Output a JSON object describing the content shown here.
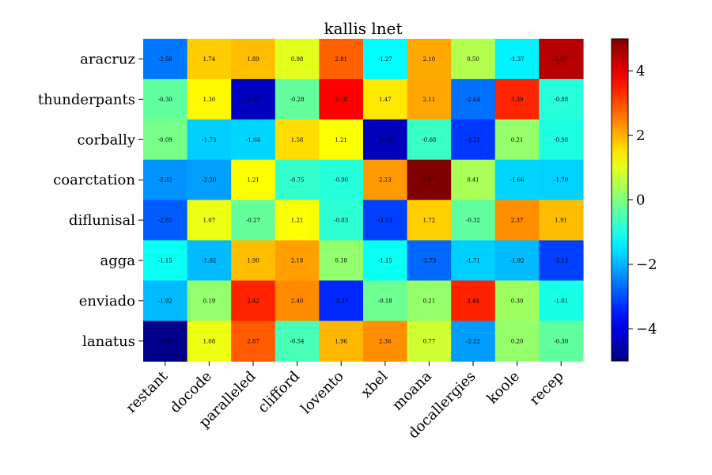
{
  "chart_data": {
    "type": "heatmap",
    "title": "kallis lnet",
    "xlabel": "",
    "ylabel": "",
    "rows": [
      "aracruz",
      "thunderpants",
      "corbally",
      "coarctation",
      "diflunisal",
      "agga",
      "enviado",
      "lanatus"
    ],
    "columns": [
      "restant",
      "docode",
      "paralleled",
      "clifford",
      "lovento",
      "xbel",
      "moana",
      "docallergies",
      "koole",
      "recep"
    ],
    "values": [
      [
        -2.58,
        1.74,
        1.89,
        0.98,
        2.81,
        -1.27,
        2.1,
        0.5,
        -1.37,
        4.47
      ],
      [
        -0.3,
        1.3,
        -4.37,
        -0.28,
        3.78,
        1.47,
        2.11,
        -2.64,
        3.39,
        -0.88
      ],
      [
        -0.09,
        -1.73,
        -1.64,
        1.58,
        1.21,
        -4.44,
        -0.68,
        -3.21,
        0.21,
        -0.98
      ],
      [
        -2.32,
        -2.2,
        1.21,
        -0.75,
        -0.9,
        2.23,
        5.07,
        0.41,
        -1.66,
        -1.7
      ],
      [
        -2.85,
        1.07,
        -0.27,
        1.21,
        -0.83,
        -3.13,
        1.72,
        -0.32,
        2.37,
        1.91
      ],
      [
        -1.15,
        -1.92,
        1.9,
        2.18,
        0.18,
        -1.15,
        -2.73,
        -1.71,
        -1.92,
        -3.13
      ],
      [
        -1.92,
        0.19,
        3.42,
        2.4,
        -3.37,
        -0.18,
        0.21,
        3.44,
        0.3,
        -1.01
      ],
      [
        -4.89,
        1.08,
        2.87,
        -0.54,
        1.96,
        2.36,
        0.77,
        -2.22,
        0.2,
        -0.3
      ]
    ],
    "value_format": "2 decimals",
    "colormap": "jet",
    "color_range": [
      -5,
      5
    ],
    "colorbar_ticks": [
      -4,
      -2,
      0,
      2,
      4
    ],
    "colorbar_tick_labels": [
      "−4",
      "−2",
      "0",
      "2",
      "4"
    ],
    "grid": false,
    "colorbar_position": "right"
  }
}
